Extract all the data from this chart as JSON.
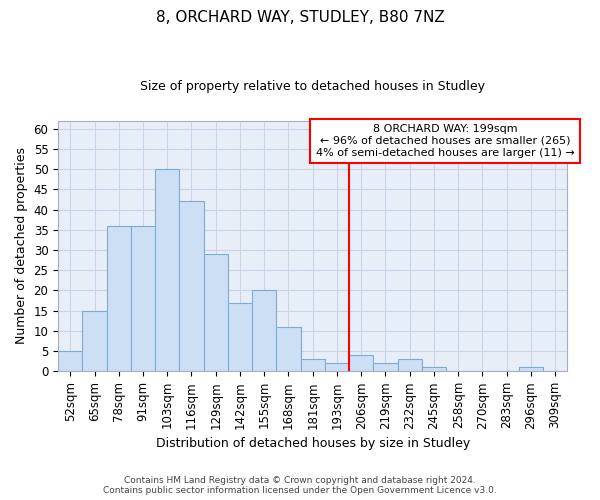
{
  "title": "8, ORCHARD WAY, STUDLEY, B80 7NZ",
  "subtitle": "Size of property relative to detached houses in Studley",
  "xlabel": "Distribution of detached houses by size in Studley",
  "ylabel": "Number of detached properties",
  "bar_color": "#ccdff5",
  "bar_edge_color": "#7aadd4",
  "grid_color": "#c8d4e8",
  "background_color": "#e8eef8",
  "categories": [
    "52sqm",
    "65sqm",
    "78sqm",
    "91sqm",
    "103sqm",
    "116sqm",
    "129sqm",
    "142sqm",
    "155sqm",
    "168sqm",
    "181sqm",
    "193sqm",
    "206sqm",
    "219sqm",
    "232sqm",
    "245sqm",
    "258sqm",
    "270sqm",
    "283sqm",
    "296sqm",
    "309sqm"
  ],
  "values": [
    5,
    15,
    36,
    36,
    50,
    42,
    29,
    17,
    20,
    11,
    3,
    2,
    4,
    2,
    3,
    1,
    0,
    0,
    0,
    1,
    0
  ],
  "ylim": [
    0,
    62
  ],
  "yticks": [
    0,
    5,
    10,
    15,
    20,
    25,
    30,
    35,
    40,
    45,
    50,
    55,
    60
  ],
  "property_label": "8 ORCHARD WAY: 199sqm",
  "pct_smaller": 96,
  "n_smaller": 265,
  "pct_larger": 4,
  "n_larger": 11,
  "vline_position": 11.5,
  "footer_line1": "Contains HM Land Registry data © Crown copyright and database right 2024.",
  "footer_line2": "Contains public sector information licensed under the Open Government Licence v3.0."
}
